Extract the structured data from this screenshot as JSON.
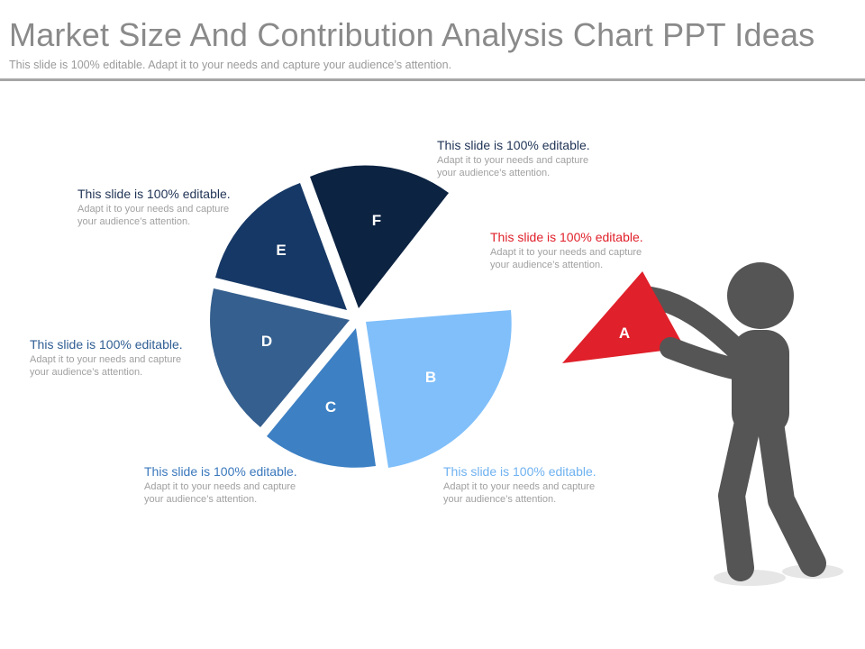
{
  "header": {
    "title": "Market Size And Contribution Analysis Chart PPT Ideas",
    "subtitle": "This slide is 100% editable. Adapt it to your needs and capture your audience’s attention."
  },
  "segments": [
    {
      "id": "A",
      "label": "A",
      "color": "#e0202a"
    },
    {
      "id": "B",
      "label": "B",
      "color": "#80bffa"
    },
    {
      "id": "C",
      "label": "C",
      "color": "#3d80c4"
    },
    {
      "id": "D",
      "label": "D",
      "color": "#355f8e"
    },
    {
      "id": "E",
      "label": "E",
      "color": "#163866"
    },
    {
      "id": "F",
      "label": "F",
      "color": "#0c2342"
    }
  ],
  "figure": {
    "color": "#555555"
  },
  "captions": {
    "F": {
      "heading": "This slide is 100% editable.",
      "line1": "Adapt it to your needs and capture",
      "line2": "your audience’s attention.",
      "color": "#1f3355"
    },
    "E": {
      "heading": "This slide is 100% editable.",
      "line1": "Adapt it to your needs and capture",
      "line2": "your audience’s attention.",
      "color": "#1f3355"
    },
    "A": {
      "heading": "This slide is 100% editable.",
      "line1": "Adapt it to your needs and capture",
      "line2": "your audience’s attention.",
      "color": "#e0202a"
    },
    "D": {
      "heading": "This slide is 100% editable.",
      "line1": "Adapt it to your needs and capture",
      "line2": "your audience’s attention.",
      "color": "#2f5e93"
    },
    "C": {
      "heading": "This slide is 100% editable.",
      "line1": "Adapt it to your needs and capture",
      "line2": "your audience’s attention.",
      "color": "#3a78bc"
    },
    "B": {
      "heading": "This slide is 100% editable.",
      "line1": "Adapt it to your needs and capture",
      "line2": "your audience’s attention.",
      "color": "#6fb2f0"
    }
  }
}
